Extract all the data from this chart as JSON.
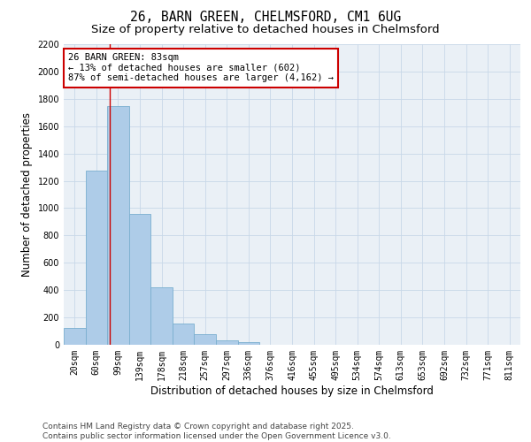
{
  "title_line1": "26, BARN GREEN, CHELMSFORD, CM1 6UG",
  "title_line2": "Size of property relative to detached houses in Chelmsford",
  "xlabel": "Distribution of detached houses by size in Chelmsford",
  "ylabel": "Number of detached properties",
  "categories": [
    "20sqm",
    "60sqm",
    "99sqm",
    "139sqm",
    "178sqm",
    "218sqm",
    "257sqm",
    "297sqm",
    "336sqm",
    "376sqm",
    "416sqm",
    "455sqm",
    "495sqm",
    "534sqm",
    "574sqm",
    "613sqm",
    "653sqm",
    "692sqm",
    "732sqm",
    "771sqm",
    "811sqm"
  ],
  "values": [
    120,
    1275,
    1750,
    960,
    420,
    155,
    75,
    35,
    20,
    0,
    0,
    0,
    0,
    0,
    0,
    0,
    0,
    0,
    0,
    0,
    0
  ],
  "bar_color": "#aecce8",
  "bar_edgecolor": "#7aafcf",
  "vline_x_index": 1.62,
  "vline_color": "#cc0000",
  "annotation_text": "26 BARN GREEN: 83sqm\n← 13% of detached houses are smaller (602)\n87% of semi-detached houses are larger (4,162) →",
  "annotation_box_color": "#cc0000",
  "annotation_box_facecolor": "#ffffff",
  "ylim": [
    0,
    2200
  ],
  "yticks": [
    0,
    200,
    400,
    600,
    800,
    1000,
    1200,
    1400,
    1600,
    1800,
    2000,
    2200
  ],
  "grid_color": "#c8d8e8",
  "bg_color": "#eaf0f6",
  "footer_line1": "Contains HM Land Registry data © Crown copyright and database right 2025.",
  "footer_line2": "Contains public sector information licensed under the Open Government Licence v3.0.",
  "title_fontsize": 10.5,
  "subtitle_fontsize": 9.5,
  "axis_label_fontsize": 8.5,
  "tick_fontsize": 7,
  "annotation_fontsize": 7.5,
  "footer_fontsize": 6.5
}
